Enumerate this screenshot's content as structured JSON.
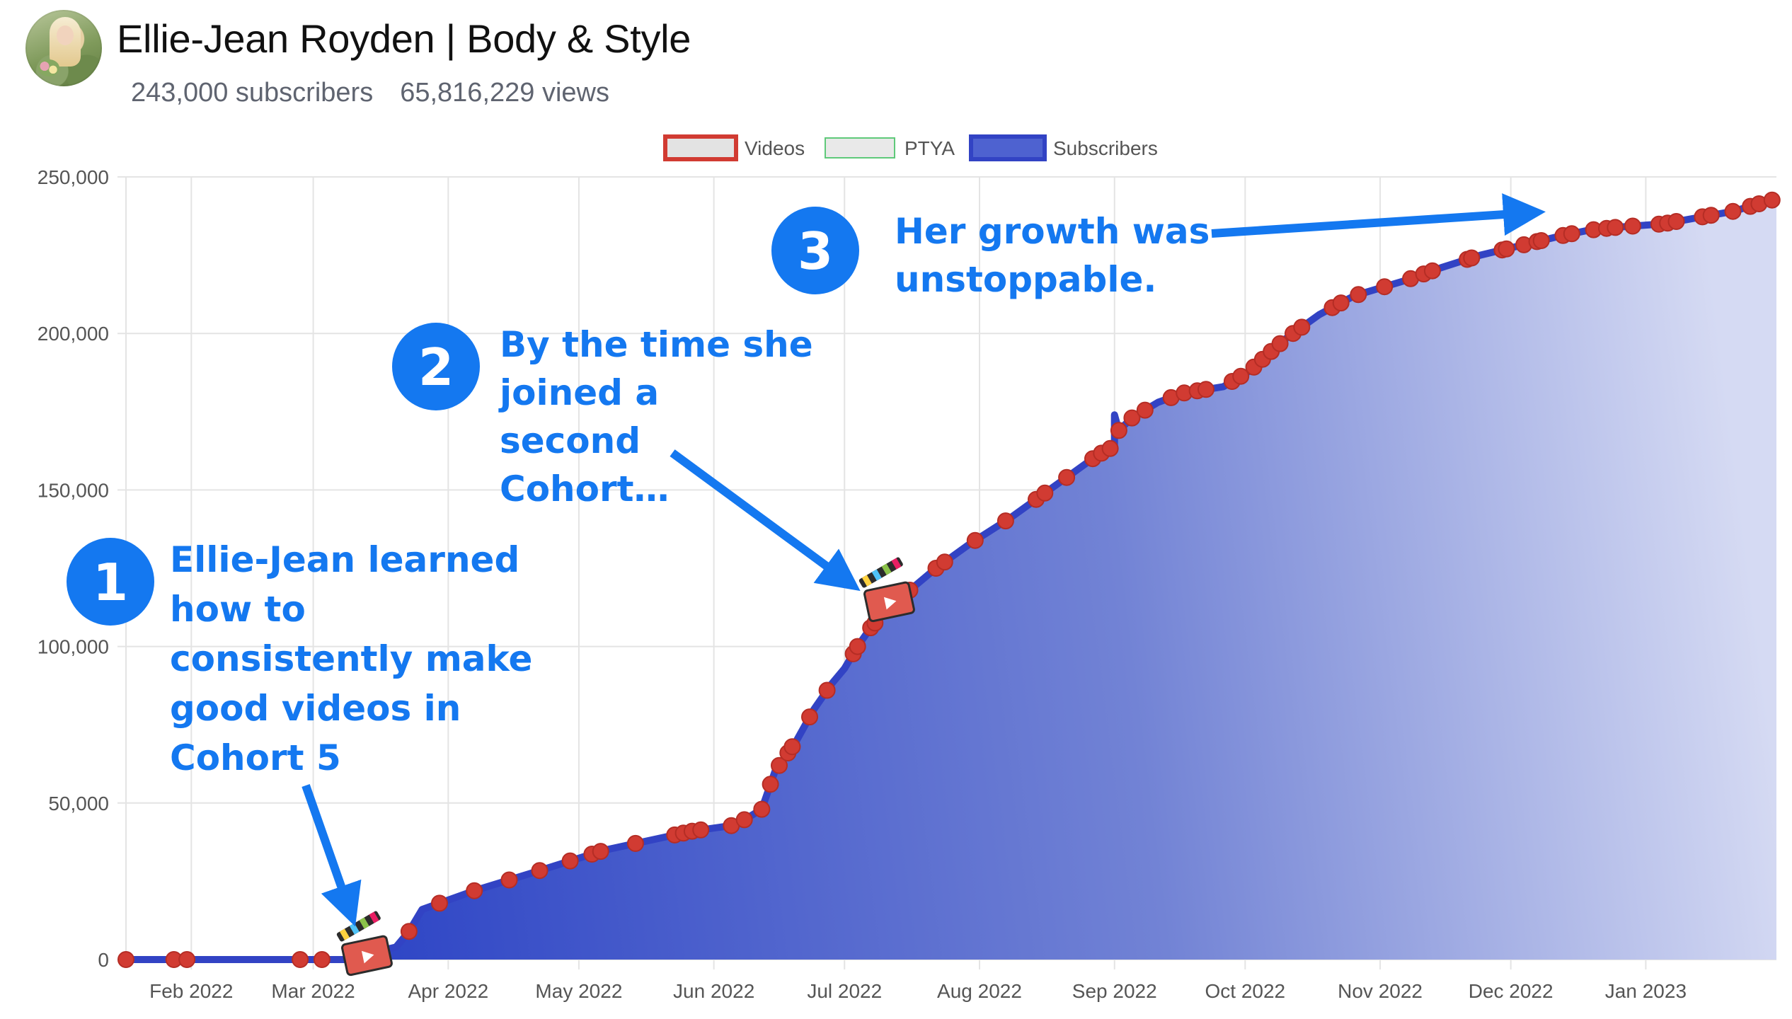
{
  "channel": {
    "name": "Ellie-Jean Royden | Body & Style",
    "subscribers": "243,000 subscribers",
    "views": "65,816,229 views"
  },
  "colors": {
    "video_marker": "#d13b32",
    "subscriber_line": "#3243c4",
    "fill_dark": "#3047c6",
    "fill_light": "#d5daf3",
    "ptya_border": "#5fc97a",
    "annotation_blue": "#1478f0",
    "grid": "#e4e4e4"
  },
  "icons": [
    "clapperboard-icon",
    "clapperboard-icon"
  ],
  "annotations": [
    {
      "number": "1",
      "lines": [
        "Ellie-Jean learned",
        "how to",
        "consistently make",
        "good videos in",
        "Cohort 5"
      ]
    },
    {
      "number": "2",
      "lines": [
        "By the time she",
        "joined a",
        "second",
        "Cohort…"
      ]
    },
    {
      "number": "3",
      "lines": [
        "Her growth was",
        "unstoppable."
      ]
    }
  ],
  "chart_data": {
    "type": "area",
    "title": "",
    "xlabel": "",
    "ylabel": "",
    "x_ticks": [
      "Feb 2022",
      "Mar 2022",
      "Apr 2022",
      "May 2022",
      "Jun 2022",
      "Jul 2022",
      "Aug 2022",
      "Sep 2022",
      "Oct 2022",
      "Nov 2022",
      "Dec 2022",
      "Jan 2023"
    ],
    "y_ticks": [
      "0",
      "50,000",
      "100,000",
      "150,000",
      "200,000",
      "250,000"
    ],
    "ylim": [
      0,
      250000
    ],
    "xlim": [
      "2022-01-17",
      "2023-01-31"
    ],
    "grid": true,
    "legend": [
      "Videos",
      "PTYA",
      "Subscribers"
    ],
    "legend_position": "top-center",
    "series": [
      {
        "name": "Subscribers",
        "x": [
          "2022-01-17",
          "2022-03-08",
          "2022-03-14",
          "2022-03-20",
          "2022-03-23",
          "2022-03-26",
          "2022-04-07",
          "2022-04-21",
          "2022-05-07",
          "2022-05-27",
          "2022-06-06",
          "2022-06-12",
          "2022-06-15",
          "2022-06-20",
          "2022-06-24",
          "2022-06-28",
          "2022-07-01",
          "2022-07-04",
          "2022-07-07",
          "2022-07-11",
          "2022-07-16",
          "2022-07-22",
          "2022-07-30",
          "2022-08-08",
          "2022-08-15",
          "2022-08-22",
          "2022-08-28",
          "2022-09-01",
          "2022-09-01",
          "2022-09-02",
          "2022-09-05",
          "2022-09-11",
          "2022-09-17",
          "2022-09-26",
          "2022-10-02",
          "2022-10-10",
          "2022-10-18",
          "2022-10-26",
          "2022-11-07",
          "2022-11-15",
          "2022-11-24",
          "2022-12-03",
          "2022-12-12",
          "2022-12-19",
          "2022-12-26",
          "2023-01-05",
          "2023-01-13",
          "2023-01-21",
          "2023-01-31"
        ],
        "y": [
          0,
          0,
          2000,
          4000,
          9000,
          16000,
          22000,
          28000,
          35000,
          41000,
          43000,
          48000,
          60000,
          70000,
          80000,
          88000,
          93000,
          100000,
          106000,
          112000,
          118000,
          125000,
          133000,
          141000,
          148000,
          155000,
          161000,
          164000,
          174000,
          169000,
          173000,
          178000,
          181000,
          183000,
          188000,
          198000,
          206000,
          212000,
          217000,
          221000,
          225000,
          228000,
          231000,
          233000,
          234000,
          235000,
          237000,
          239000,
          243000
        ]
      }
    ],
    "videos": {
      "name": "Videos",
      "x": [
        "2022-01-17",
        "2022-01-28",
        "2022-01-31",
        "2022-02-26",
        "2022-03-03",
        "2022-03-10",
        "2022-03-23",
        "2022-03-30",
        "2022-04-07",
        "2022-04-15",
        "2022-04-22",
        "2022-04-29",
        "2022-05-04",
        "2022-05-06",
        "2022-05-14",
        "2022-05-23",
        "2022-05-25",
        "2022-05-27",
        "2022-05-29",
        "2022-06-05",
        "2022-06-08",
        "2022-06-12",
        "2022-06-14",
        "2022-06-16",
        "2022-06-18",
        "2022-06-19",
        "2022-06-23",
        "2022-06-27",
        "2022-07-03",
        "2022-07-04",
        "2022-07-07",
        "2022-07-08",
        "2022-07-14",
        "2022-07-16",
        "2022-07-22",
        "2022-07-24",
        "2022-07-31",
        "2022-08-07",
        "2022-08-14",
        "2022-08-16",
        "2022-08-21",
        "2022-08-27",
        "2022-08-29",
        "2022-08-31",
        "2022-09-02",
        "2022-09-05",
        "2022-09-08",
        "2022-09-14",
        "2022-09-17",
        "2022-09-20",
        "2022-09-22",
        "2022-09-28",
        "2022-09-30",
        "2022-10-03",
        "2022-10-05",
        "2022-10-07",
        "2022-10-09",
        "2022-10-12",
        "2022-10-14",
        "2022-10-21",
        "2022-10-23",
        "2022-10-27",
        "2022-11-02",
        "2022-11-08",
        "2022-11-11",
        "2022-11-13",
        "2022-11-21",
        "2022-11-22",
        "2022-11-29",
        "2022-11-30",
        "2022-12-04",
        "2022-12-07",
        "2022-12-08",
        "2022-12-13",
        "2022-12-15",
        "2022-12-20",
        "2022-12-23",
        "2022-12-25",
        "2022-12-29",
        "2023-01-04",
        "2023-01-06",
        "2023-01-08",
        "2023-01-14",
        "2023-01-16",
        "2023-01-21",
        "2023-01-25",
        "2023-01-27",
        "2023-01-30"
      ]
    }
  }
}
